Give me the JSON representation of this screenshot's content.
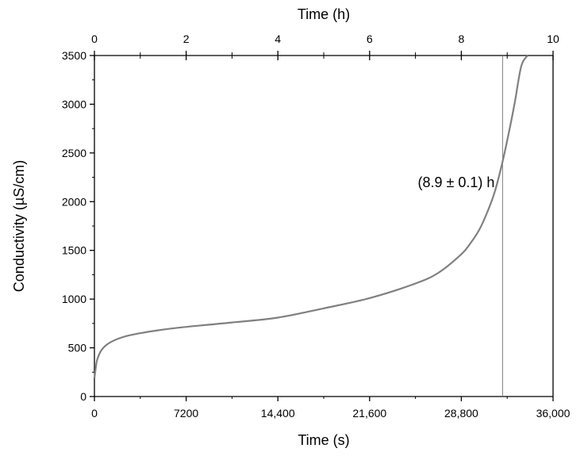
{
  "chart_data": {
    "type": "line",
    "xlabel": "Time (s)",
    "ylabel": "Conductivity (µS/cm)",
    "x2label": "Time (h)",
    "xlim": [
      0,
      36000
    ],
    "ylim": [
      0,
      3500
    ],
    "x2lim": [
      0,
      10
    ],
    "xticks": [
      {
        "value": 0,
        "label": "0"
      },
      {
        "value": 7200,
        "label": "7200"
      },
      {
        "value": 14400,
        "label": "14,400"
      },
      {
        "value": 21600,
        "label": "21,600"
      },
      {
        "value": 28800,
        "label": "28,800"
      },
      {
        "value": 36000,
        "label": "36,000"
      }
    ],
    "yticks": [
      {
        "value": 0,
        "label": "0"
      },
      {
        "value": 500,
        "label": "500"
      },
      {
        "value": 1000,
        "label": "1000"
      },
      {
        "value": 1500,
        "label": "1500"
      },
      {
        "value": 2000,
        "label": "2000"
      },
      {
        "value": 2500,
        "label": "2500"
      },
      {
        "value": 3000,
        "label": "3000"
      },
      {
        "value": 3500,
        "label": "3500"
      }
    ],
    "x2ticks": [
      {
        "value": 0,
        "label": "0"
      },
      {
        "value": 2,
        "label": "2"
      },
      {
        "value": 4,
        "label": "4"
      },
      {
        "value": 6,
        "label": "6"
      },
      {
        "value": 8,
        "label": "8"
      },
      {
        "value": 10,
        "label": "10"
      }
    ],
    "grid": false,
    "line_color": "#808080",
    "series": [
      {
        "x": [
          0,
          100,
          200,
          400,
          600,
          900,
          1300,
          1800,
          2500,
          3600,
          5000,
          7200,
          10800,
          14400,
          18000,
          21600,
          25200,
          27000,
          28800,
          29500,
          30200,
          30800,
          31400,
          32000,
          32500,
          33000,
          33500,
          34000
        ],
        "y": [
          190,
          290,
          370,
          440,
          485,
          525,
          560,
          590,
          620,
          650,
          680,
          715,
          760,
          810,
          905,
          1010,
          1160,
          1270,
          1460,
          1570,
          1710,
          1880,
          2090,
          2390,
          2690,
          3020,
          3390,
          3500
        ]
      }
    ],
    "vline": {
      "x": 32040
    },
    "annotation": {
      "text": "(8.9 ± 0.1) h",
      "x": 32040,
      "y": 2150
    }
  }
}
